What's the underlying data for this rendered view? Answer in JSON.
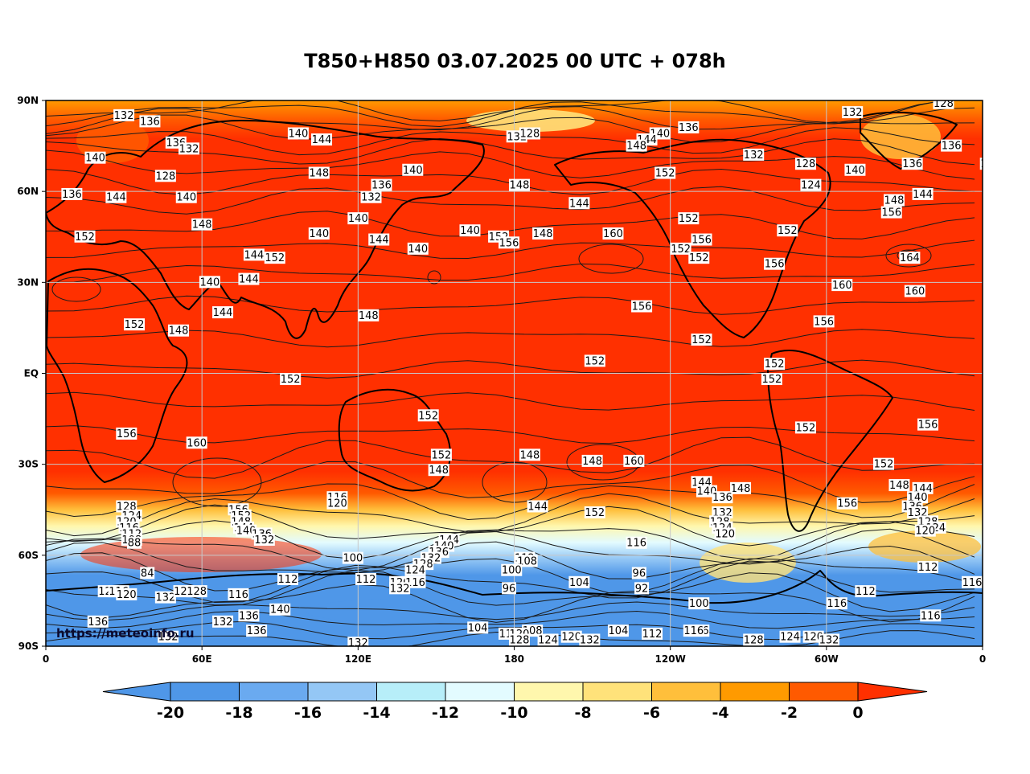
{
  "title": "T850+H850 03.07.2025 00 UTC + 078h",
  "source": "https://meteoinfo.ru",
  "lat_labels": [
    "90N",
    "60N",
    "30N",
    "EQ",
    "30S",
    "60S",
    "90S"
  ],
  "lon_labels": [
    "0",
    "60E",
    "120E",
    "180",
    "120W",
    "60W",
    "0"
  ],
  "colorbar": {
    "ticks": [
      "-20",
      "-18",
      "-16",
      "-14",
      "-12",
      "-10",
      "-8",
      "-6",
      "-4",
      "-2",
      "0"
    ],
    "colors": [
      "#4f97e8",
      "#4f97e8",
      "#6aaaf0",
      "#94c7f5",
      "#b7eef9",
      "#e3fbff",
      "#fff7ad",
      "#ffe27a",
      "#ffbf3b",
      "#ff9a00",
      "#ff5a00",
      "#ff3000"
    ]
  },
  "colors": {
    "warm": "#ff3000",
    "grid": "#c8c8c8",
    "frame": "#000000"
  },
  "contour_labels": [
    {
      "t": "132",
      "lon": 30,
      "lat": 85
    },
    {
      "t": "136",
      "lon": 40,
      "lat": 83
    },
    {
      "t": "140",
      "lon": 97,
      "lat": 79
    },
    {
      "t": "144",
      "lon": 106,
      "lat": 77
    },
    {
      "t": "132",
      "lon": 181,
      "lat": 78
    },
    {
      "t": "128",
      "lon": 186,
      "lat": 79
    },
    {
      "t": "140",
      "lon": 141,
      "lat": 67
    },
    {
      "t": "148",
      "lon": 105,
      "lat": 66
    },
    {
      "t": "136",
      "lon": 129,
      "lat": 62
    },
    {
      "t": "132",
      "lon": 125,
      "lat": 58
    },
    {
      "t": "140",
      "lon": 120,
      "lat": 51
    },
    {
      "t": "140",
      "lon": 105,
      "lat": 46
    },
    {
      "t": "144",
      "lon": 128,
      "lat": 44
    },
    {
      "t": "140",
      "lon": 143,
      "lat": 41
    },
    {
      "t": "136",
      "lon": 50,
      "lat": 76
    },
    {
      "t": "132",
      "lon": 55,
      "lat": 74
    },
    {
      "t": "140",
      "lon": 19,
      "lat": 71
    },
    {
      "t": "128",
      "lon": 46,
      "lat": 65
    },
    {
      "t": "136",
      "lon": 10,
      "lat": 59
    },
    {
      "t": "144",
      "lon": 27,
      "lat": 58
    },
    {
      "t": "140",
      "lon": 54,
      "lat": 58
    },
    {
      "t": "148",
      "lon": 60,
      "lat": 49
    },
    {
      "t": "152",
      "lon": 15,
      "lat": 45
    },
    {
      "t": "140",
      "lon": 63,
      "lat": 30
    },
    {
      "t": "144",
      "lon": 78,
      "lat": 31
    },
    {
      "t": "144",
      "lon": 80,
      "lat": 39
    },
    {
      "t": "152",
      "lon": 88,
      "lat": 38
    },
    {
      "t": "144",
      "lon": 68,
      "lat": 20
    },
    {
      "t": "152",
      "lon": 34,
      "lat": 16
    },
    {
      "t": "148",
      "lon": 51,
      "lat": 14
    },
    {
      "t": "148",
      "lon": 124,
      "lat": 19
    },
    {
      "t": "152",
      "lon": 94,
      "lat": -2
    },
    {
      "t": "148",
      "lon": 182,
      "lat": 62
    },
    {
      "t": "144",
      "lon": 205,
      "lat": 56
    },
    {
      "t": "140",
      "lon": 163,
      "lat": 47
    },
    {
      "t": "152",
      "lon": 174,
      "lat": 45
    },
    {
      "t": "156",
      "lon": 178,
      "lat": 43
    },
    {
      "t": "148",
      "lon": 191,
      "lat": 46
    },
    {
      "t": "160",
      "lon": 218,
      "lat": 46
    },
    {
      "t": "152",
      "lon": 247,
      "lat": 51
    },
    {
      "t": "156",
      "lon": 252,
      "lat": 44
    },
    {
      "t": "152",
      "lon": 244,
      "lat": 41
    },
    {
      "t": "152",
      "lon": 251,
      "lat": 38
    },
    {
      "t": "156",
      "lon": 229,
      "lat": 22
    },
    {
      "t": "152",
      "lon": 252,
      "lat": 11
    },
    {
      "t": "152",
      "lon": 211,
      "lat": 4
    },
    {
      "t": "140",
      "lon": 236,
      "lat": 79
    },
    {
      "t": "144",
      "lon": 231,
      "lat": 77
    },
    {
      "t": "148",
      "lon": 227,
      "lat": 75
    },
    {
      "t": "136",
      "lon": 247,
      "lat": 81
    },
    {
      "t": "152",
      "lon": 238,
      "lat": 66
    },
    {
      "t": "132",
      "lon": 272,
      "lat": 72
    },
    {
      "t": "128",
      "lon": 292,
      "lat": 69
    },
    {
      "t": "124",
      "lon": 294,
      "lat": 62
    },
    {
      "t": "152",
      "lon": 285,
      "lat": 47
    },
    {
      "t": "156",
      "lon": 280,
      "lat": 36
    },
    {
      "t": "132",
      "lon": 310,
      "lat": 86
    },
    {
      "t": "128",
      "lon": 345,
      "lat": 89
    },
    {
      "t": "136",
      "lon": 348,
      "lat": 75
    },
    {
      "t": "136",
      "lon": 333,
      "lat": 69
    },
    {
      "t": "140",
      "lon": 311,
      "lat": 67
    },
    {
      "t": "140",
      "lon": 363,
      "lat": 69
    },
    {
      "t": "144",
      "lon": 337,
      "lat": 59
    },
    {
      "t": "148",
      "lon": 326,
      "lat": 57
    },
    {
      "t": "156",
      "lon": 325,
      "lat": 53
    },
    {
      "t": "164",
      "lon": 332,
      "lat": 38
    },
    {
      "t": "160",
      "lon": 306,
      "lat": 29
    },
    {
      "t": "160",
      "lon": 334,
      "lat": 27
    },
    {
      "t": "156",
      "lon": 299,
      "lat": 17
    },
    {
      "t": "152",
      "lon": 280,
      "lat": 3
    },
    {
      "t": "152",
      "lon": 279,
      "lat": -2
    },
    {
      "t": "152",
      "lon": 292,
      "lat": -18
    },
    {
      "t": "156",
      "lon": 339,
      "lat": -17
    },
    {
      "t": "156",
      "lon": 31,
      "lat": -20
    },
    {
      "t": "160",
      "lon": 58,
      "lat": -23
    },
    {
      "t": "152",
      "lon": 147,
      "lat": -14
    },
    {
      "t": "152",
      "lon": 152,
      "lat": -27
    },
    {
      "t": "148",
      "lon": 151,
      "lat": -32
    },
    {
      "t": "148",
      "lon": 186,
      "lat": -27
    },
    {
      "t": "148",
      "lon": 210,
      "lat": -29
    },
    {
      "t": "160",
      "lon": 226,
      "lat": -29
    },
    {
      "t": "144",
      "lon": 189,
      "lat": -44
    },
    {
      "t": "152",
      "lon": 211,
      "lat": -46
    },
    {
      "t": "144",
      "lon": 252,
      "lat": -36
    },
    {
      "t": "140",
      "lon": 254,
      "lat": -39
    },
    {
      "t": "148",
      "lon": 267,
      "lat": -38
    },
    {
      "t": "136",
      "lon": 260,
      "lat": -41
    },
    {
      "t": "132",
      "lon": 260,
      "lat": -46
    },
    {
      "t": "128",
      "lon": 259,
      "lat": -49
    },
    {
      "t": "124",
      "lon": 260,
      "lat": -51
    },
    {
      "t": "120",
      "lon": 261,
      "lat": -53
    },
    {
      "t": "156",
      "lon": 308,
      "lat": -43
    },
    {
      "t": "152",
      "lon": 322,
      "lat": -30
    },
    {
      "t": "148",
      "lon": 328,
      "lat": -37
    },
    {
      "t": "144",
      "lon": 337,
      "lat": -38
    },
    {
      "t": "140",
      "lon": 335,
      "lat": -41
    },
    {
      "t": "136",
      "lon": 333,
      "lat": -44
    },
    {
      "t": "132",
      "lon": 335,
      "lat": -46
    },
    {
      "t": "128",
      "lon": 339,
      "lat": -49
    },
    {
      "t": "124",
      "lon": 342,
      "lat": -51
    },
    {
      "t": "120",
      "lon": 338,
      "lat": -52
    },
    {
      "t": "112",
      "lon": 339,
      "lat": -64
    },
    {
      "t": "116",
      "lon": 356,
      "lat": -69
    },
    {
      "t": "112",
      "lon": 315,
      "lat": -72
    },
    {
      "t": "116",
      "lon": 304,
      "lat": -76
    },
    {
      "t": "116",
      "lon": 340,
      "lat": -80
    },
    {
      "t": "128",
      "lon": 31,
      "lat": -44
    },
    {
      "t": "124",
      "lon": 33,
      "lat": -47
    },
    {
      "t": "120",
      "lon": 31,
      "lat": -49
    },
    {
      "t": "116",
      "lon": 32,
      "lat": -51
    },
    {
      "t": "112",
      "lon": 33,
      "lat": -53
    },
    {
      "t": "108",
      "lon": 33,
      "lat": -55
    },
    {
      "t": "88",
      "lon": 34,
      "lat": -56
    },
    {
      "t": "84",
      "lon": 39,
      "lat": -66
    },
    {
      "t": "156",
      "lon": 74,
      "lat": -45
    },
    {
      "t": "152",
      "lon": 75,
      "lat": -47
    },
    {
      "t": "148",
      "lon": 75,
      "lat": -49
    },
    {
      "t": "144",
      "lon": 76,
      "lat": -51
    },
    {
      "t": "140",
      "lon": 77,
      "lat": -52
    },
    {
      "t": "136",
      "lon": 83,
      "lat": -53
    },
    {
      "t": "132",
      "lon": 84,
      "lat": -55
    },
    {
      "t": "116",
      "lon": 112,
      "lat": -41
    },
    {
      "t": "120",
      "lon": 112,
      "lat": -43
    },
    {
      "t": "100",
      "lon": 118,
      "lat": -61
    },
    {
      "t": "112",
      "lon": 93,
      "lat": -68
    },
    {
      "t": "112",
      "lon": 123,
      "lat": -68
    },
    {
      "t": "144",
      "lon": 155,
      "lat": -55
    },
    {
      "t": "140",
      "lon": 153,
      "lat": -57
    },
    {
      "t": "136",
      "lon": 151,
      "lat": -59
    },
    {
      "t": "132",
      "lon": 148,
      "lat": -61
    },
    {
      "t": "128",
      "lon": 145,
      "lat": -63
    },
    {
      "t": "124",
      "lon": 142,
      "lat": -65
    },
    {
      "t": "120",
      "lon": 136,
      "lat": -69
    },
    {
      "t": "116",
      "lon": 142,
      "lat": -69
    },
    {
      "t": "132",
      "lon": 136,
      "lat": -71
    },
    {
      "t": "112",
      "lon": 184,
      "lat": -61
    },
    {
      "t": "108",
      "lon": 185,
      "lat": -62
    },
    {
      "t": "100",
      "lon": 179,
      "lat": -65
    },
    {
      "t": "96",
      "lon": 178,
      "lat": -71
    },
    {
      "t": "104",
      "lon": 205,
      "lat": -69
    },
    {
      "t": "116",
      "lon": 227,
      "lat": -56
    },
    {
      "t": "96",
      "lon": 228,
      "lat": -66
    },
    {
      "t": "92",
      "lon": 229,
      "lat": -71
    },
    {
      "t": "100",
      "lon": 251,
      "lat": -76
    },
    {
      "t": "116",
      "lon": 251,
      "lat": -85
    },
    {
      "t": "120",
      "lon": 24,
      "lat": -72
    },
    {
      "t": "116",
      "lon": 28,
      "lat": -72
    },
    {
      "t": "120",
      "lon": 31,
      "lat": -73
    },
    {
      "t": "132",
      "lon": 46,
      "lat": -74
    },
    {
      "t": "120",
      "lon": 53,
      "lat": -72
    },
    {
      "t": "128",
      "lon": 58,
      "lat": -72
    },
    {
      "t": "116",
      "lon": 74,
      "lat": -73
    },
    {
      "t": "140",
      "lon": 90,
      "lat": -78
    },
    {
      "t": "136",
      "lon": 78,
      "lat": -80
    },
    {
      "t": "132",
      "lon": 68,
      "lat": -82
    },
    {
      "t": "136",
      "lon": 20,
      "lat": -82
    },
    {
      "t": "136",
      "lon": 81,
      "lat": -85
    },
    {
      "t": "132",
      "lon": 47,
      "lat": -87
    },
    {
      "t": "132",
      "lon": 120,
      "lat": -89
    },
    {
      "t": "104",
      "lon": 166,
      "lat": -84
    },
    {
      "t": "112",
      "lon": 178,
      "lat": -86
    },
    {
      "t": "108",
      "lon": 187,
      "lat": -85
    },
    {
      "t": "120",
      "lon": 182,
      "lat": -86
    },
    {
      "t": "128",
      "lon": 182,
      "lat": -88
    },
    {
      "t": "124",
      "lon": 193,
      "lat": -88
    },
    {
      "t": "120",
      "lon": 202,
      "lat": -87
    },
    {
      "t": "132",
      "lon": 209,
      "lat": -88
    },
    {
      "t": "104",
      "lon": 220,
      "lat": -85
    },
    {
      "t": "112",
      "lon": 233,
      "lat": -86
    },
    {
      "t": "116",
      "lon": 249,
      "lat": -85
    },
    {
      "t": "128",
      "lon": 272,
      "lat": -88
    },
    {
      "t": "124",
      "lon": 286,
      "lat": -87
    },
    {
      "t": "120",
      "lon": 295,
      "lat": -87
    },
    {
      "t": "132",
      "lon": 301,
      "lat": -88
    }
  ]
}
